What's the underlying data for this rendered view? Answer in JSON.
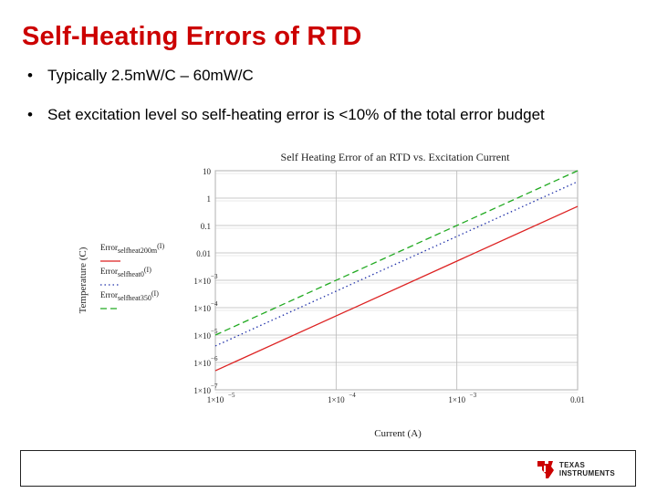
{
  "slide": {
    "title": "Self-Heating Errors of RTD",
    "bullets": [
      "Typically 2.5mW/C – 60mW/C",
      "Set excitation level so self-heating error is <10% of the total error budget"
    ]
  },
  "chart_data": {
    "type": "line",
    "title": "Self Heating Error of an RTD vs. Excitation Current",
    "xlabel": "Current (A)",
    "ylabel": "Temperature (C)",
    "x_scale": "log",
    "y_scale": "log",
    "xlim": [
      1e-05,
      0.01
    ],
    "ylim": [
      1e-07,
      10
    ],
    "x_ticks": [
      {
        "value": 1e-05,
        "label": "1×10"
      },
      {
        "value": 0.0001,
        "label": "1×10"
      },
      {
        "value": 0.001,
        "label": "1×10"
      },
      {
        "value": 0.01,
        "label": "0.01"
      }
    ],
    "x_tick_exponents": [
      "−5",
      "−4",
      "−3",
      ""
    ],
    "y_ticks": [
      {
        "value": 10,
        "label": "10"
      },
      {
        "value": 1,
        "label": "1"
      },
      {
        "value": 0.1,
        "label": "0.1"
      },
      {
        "value": 0.01,
        "label": "0.01"
      },
      {
        "value": 0.001,
        "label": "1×10"
      },
      {
        "value": 0.0001,
        "label": "1×10"
      },
      {
        "value": 1e-05,
        "label": "1×10"
      },
      {
        "value": 1e-06,
        "label": "1×10"
      },
      {
        "value": 1e-07,
        "label": "1×10"
      }
    ],
    "y_tick_exponents": [
      "",
      "",
      "",
      "",
      "−3",
      "−4",
      "−5",
      "−6",
      "−7"
    ],
    "grid": true,
    "legend_position": "left",
    "series": [
      {
        "name": "Error",
        "subscript": "selfheat200m",
        "arg": "(I)",
        "color": "#dd2222",
        "dash": "solid",
        "x": [
          1e-05,
          0.01
        ],
        "y": [
          5e-07,
          0.5
        ]
      },
      {
        "name": "Error",
        "subscript": "selfheat0",
        "arg": "(I)",
        "color": "#2233aa",
        "dash": "dotted",
        "x": [
          1e-05,
          0.01
        ],
        "y": [
          4e-06,
          4
        ]
      },
      {
        "name": "Error",
        "subscript": "selfheat350",
        "arg": "(I)",
        "color": "#22aa22",
        "dash": "dashed",
        "x": [
          1e-05,
          0.01
        ],
        "y": [
          1e-05,
          10
        ]
      }
    ]
  },
  "footer": {
    "logo_text_line1": "TEXAS",
    "logo_text_line2": "INSTRUMENTS",
    "logo_accent": "#cc0000"
  }
}
